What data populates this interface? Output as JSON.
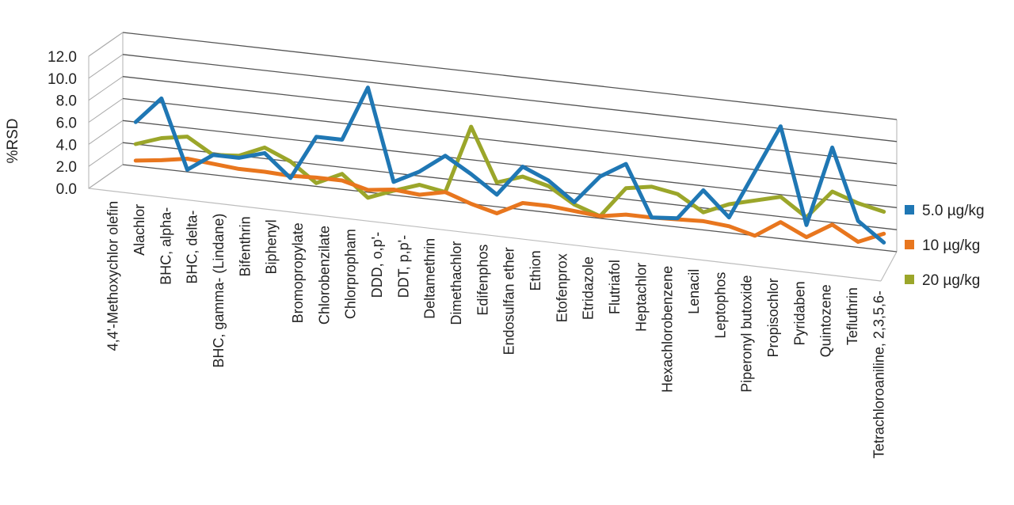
{
  "chart_data": {
    "type": "line",
    "style": "3d-perspective",
    "ylabel": "%RSD",
    "ylim": [
      0,
      12
    ],
    "y_ticks": [
      "0.0",
      "2.0",
      "4.0",
      "6.0",
      "8.0",
      "10.0",
      "12.0"
    ],
    "grid": true,
    "legend_position": "right",
    "categories": [
      "4,4'-Methoxychlor olefin",
      "Alachlor",
      "BHC, alpha-",
      "BHC, delta-",
      "BHC, gamma- (Lindane)",
      "Bifenthrin",
      "Biphenyl",
      "Bromopropylate",
      "Chlorobenzilate",
      "Chlorpropham",
      "DDD, o,p'-",
      "DDT, p,p'-",
      "Deltamethrin",
      "Dimethachlor",
      "Edifenphos",
      "Endosulfan ether",
      "Ethion",
      "Etofenprox",
      "Etridazole",
      "Flutriafol",
      "Heptachlor",
      "Hexachlorobenzene",
      "Lenacil",
      "Leptophos",
      "Piperonyl butoxide",
      "Propisochlor",
      "Pyridaben",
      "Quintozene",
      "Tefluthrin",
      "Tetrachloroaniline, 2,3,5,6-"
    ],
    "series": [
      {
        "name": "5.0 µg/kg",
        "color": "#1F77B4",
        "values": [
          4.0,
          6.4,
          0.2,
          1.8,
          1.8,
          2.5,
          0.5,
          4.5,
          4.5,
          9.5,
          1.2,
          2.4,
          4.1,
          2.7,
          1.1,
          3.9,
          2.9,
          1.2,
          3.8,
          5.2,
          0.6,
          0.8,
          3.6,
          1.4,
          5.8,
          10.2,
          1.5,
          8.8,
          2.4,
          0.7
        ]
      },
      {
        "name": "10 µg/kg",
        "color": "#E8761E",
        "values": [
          0.5,
          0.8,
          1.2,
          1.0,
          0.8,
          0.8,
          0.7,
          0.8,
          0.8,
          0.2,
          0.5,
          0.3,
          0.8,
          0.0,
          -0.6,
          0.6,
          0.6,
          0.4,
          0.2,
          0.6,
          0.6,
          0.7,
          0.8,
          0.6,
          0.0,
          1.5,
          0.4,
          1.8,
          0.5,
          1.5
        ]
      },
      {
        "name": "20 µg/kg",
        "color": "#9BA62A",
        "values": [
          2.0,
          2.8,
          3.2,
          1.8,
          2.0,
          3.0,
          2.0,
          0.3,
          1.4,
          -0.5,
          0.4,
          1.2,
          0.8,
          7.0,
          2.2,
          3.0,
          2.4,
          1.0,
          0.2,
          3.0,
          3.4,
          3.0,
          1.6,
          2.6,
          3.2,
          3.8,
          2.2,
          4.8,
          4.0,
          3.5
        ]
      }
    ]
  }
}
